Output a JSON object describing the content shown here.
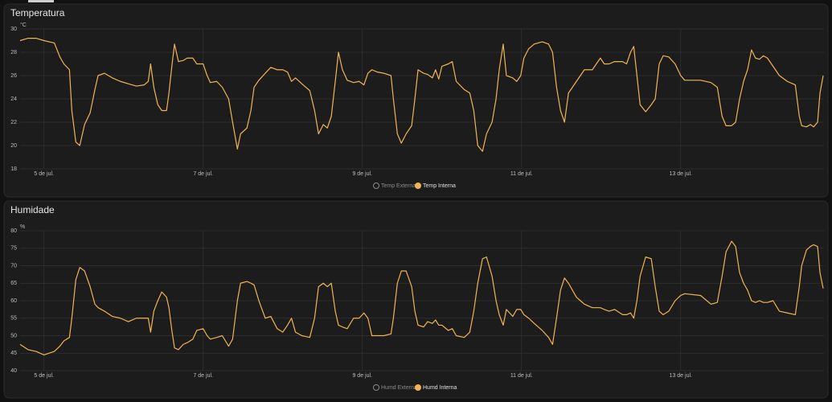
{
  "chart_data": [
    {
      "type": "line",
      "title": "Temperatura",
      "unit": "°C",
      "legend": "bottom",
      "grid": true,
      "x": [
        4.7,
        4.8,
        4.9,
        5.0,
        5.13,
        5.2,
        5.25,
        5.32,
        5.35,
        5.4,
        5.45,
        5.51,
        5.58,
        5.64,
        5.68,
        5.76,
        5.86,
        5.96,
        6.06,
        6.16,
        6.26,
        6.31,
        6.34,
        6.38,
        6.43,
        6.48,
        6.54,
        6.57,
        6.61,
        6.64,
        6.69,
        6.75,
        6.8,
        6.87,
        6.92,
        7.0,
        7.05,
        7.09,
        7.17,
        7.24,
        7.32,
        7.37,
        7.43,
        7.47,
        7.55,
        7.6,
        7.64,
        7.7,
        7.78,
        7.85,
        7.93,
        8.0,
        8.06,
        8.11,
        8.16,
        8.24,
        8.34,
        8.4,
        8.45,
        8.51,
        8.56,
        8.61,
        8.66,
        8.7,
        8.75,
        8.81,
        8.89,
        8.96,
        9.02,
        9.07,
        9.12,
        9.19,
        9.27,
        9.36,
        9.39,
        9.44,
        9.49,
        9.55,
        9.62,
        9.66,
        9.7,
        9.77,
        9.82,
        9.88,
        9.92,
        9.96,
        10.0,
        10.08,
        10.13,
        10.18,
        10.28,
        10.35,
        10.4,
        10.45,
        10.51,
        10.56,
        10.63,
        10.68,
        10.72,
        10.77,
        10.81,
        10.89,
        10.94,
        10.99,
        11.03,
        11.09,
        11.16,
        11.26,
        11.34,
        11.39,
        11.44,
        11.49,
        11.54,
        11.59,
        11.64,
        11.69,
        11.74,
        11.79,
        11.89,
        11.94,
        11.99,
        12.04,
        12.1,
        12.17,
        12.27,
        12.32,
        12.37,
        12.41,
        12.45,
        12.49,
        12.56,
        12.63,
        12.68,
        12.73,
        12.78,
        12.85,
        12.93,
        13.0,
        13.05,
        13.25,
        13.38,
        13.46,
        13.52,
        13.57,
        13.64,
        13.69,
        13.74,
        13.79,
        13.84,
        13.89,
        13.94,
        13.99,
        14.04,
        14.09,
        14.16,
        14.24,
        14.34,
        14.44,
        14.49,
        14.52,
        14.58,
        14.63,
        14.67,
        14.72,
        14.75,
        14.79
      ],
      "xlim": [
        4.7,
        14.8
      ],
      "xticks": [
        {
          "value": 5,
          "label": "5 de jul."
        },
        {
          "value": 7,
          "label": "7 de jul."
        },
        {
          "value": 9,
          "label": "9 de jul."
        },
        {
          "value": 11,
          "label": "11 de jul."
        },
        {
          "value": 13,
          "label": "13 de jul."
        }
      ],
      "ylim": [
        18,
        30
      ],
      "yticks": [
        18,
        20,
        22,
        24,
        26,
        28,
        30
      ],
      "series": [
        {
          "name": "Temp Externa",
          "color": "#8a8a8a",
          "hidden": true
        },
        {
          "name": "Temp Interna",
          "color": "#f0b454",
          "values": [
            29.0,
            29.2,
            29.2,
            29.0,
            28.8,
            27.6,
            27.0,
            26.5,
            23.0,
            20.3,
            20.0,
            21.8,
            22.8,
            24.8,
            26.0,
            26.2,
            25.8,
            25.5,
            25.3,
            25.1,
            25.2,
            25.5,
            27.0,
            25.0,
            23.5,
            23.0,
            23.0,
            24.5,
            27.0,
            28.7,
            27.2,
            27.3,
            27.5,
            27.5,
            27.0,
            27.0,
            26.0,
            25.4,
            25.5,
            25.0,
            24.0,
            22.0,
            19.7,
            21.0,
            21.5,
            23.0,
            25.0,
            25.6,
            26.2,
            26.7,
            26.5,
            26.5,
            26.3,
            25.5,
            25.8,
            25.3,
            24.7,
            23.0,
            21.0,
            21.8,
            21.5,
            22.5,
            25.5,
            28.0,
            26.5,
            25.6,
            25.4,
            25.5,
            25.2,
            26.2,
            26.5,
            26.3,
            26.2,
            26.0,
            24.0,
            21.0,
            20.2,
            21.0,
            21.7,
            24.0,
            26.5,
            26.2,
            26.1,
            25.8,
            26.5,
            25.7,
            26.8,
            27.0,
            27.2,
            25.5,
            24.8,
            24.5,
            23.0,
            20.0,
            19.5,
            21.0,
            22.0,
            24.0,
            26.5,
            28.7,
            26.0,
            25.8,
            25.5,
            26.0,
            27.5,
            28.3,
            28.7,
            28.9,
            28.7,
            28.0,
            25.0,
            23.0,
            22.0,
            24.5,
            25.0,
            25.5,
            26.0,
            26.5,
            26.5,
            27.0,
            27.5,
            27.0,
            27.0,
            27.2,
            27.2,
            27.0,
            28.0,
            28.5,
            26.0,
            23.5,
            22.9,
            23.5,
            24.0,
            27.0,
            27.7,
            27.6,
            27.0,
            26.0,
            25.6,
            25.6,
            25.4,
            25.0,
            22.5,
            21.7,
            21.7,
            22.0,
            24.0,
            25.5,
            26.5,
            28.2,
            27.5,
            27.4,
            27.7,
            27.5,
            26.8,
            26.0,
            25.5,
            25.2,
            22.5,
            21.7,
            21.6,
            21.8,
            21.6,
            22.0,
            24.5,
            26.0
          ]
        }
      ]
    },
    {
      "type": "line",
      "title": "Humidade",
      "unit": "%",
      "legend": "bottom",
      "grid": true,
      "x": [
        4.7,
        4.8,
        4.9,
        5.0,
        5.13,
        5.2,
        5.25,
        5.32,
        5.35,
        5.4,
        5.45,
        5.51,
        5.58,
        5.64,
        5.68,
        5.76,
        5.86,
        5.96,
        6.06,
        6.16,
        6.26,
        6.31,
        6.34,
        6.38,
        6.43,
        6.48,
        6.54,
        6.57,
        6.61,
        6.64,
        6.69,
        6.75,
        6.8,
        6.87,
        6.92,
        7.0,
        7.05,
        7.09,
        7.17,
        7.24,
        7.32,
        7.37,
        7.43,
        7.47,
        7.55,
        7.6,
        7.64,
        7.7,
        7.78,
        7.85,
        7.93,
        8.0,
        8.06,
        8.11,
        8.16,
        8.24,
        8.34,
        8.4,
        8.45,
        8.51,
        8.56,
        8.61,
        8.66,
        8.7,
        8.75,
        8.81,
        8.89,
        8.96,
        9.02,
        9.07,
        9.12,
        9.19,
        9.27,
        9.36,
        9.39,
        9.44,
        9.49,
        9.55,
        9.62,
        9.66,
        9.7,
        9.77,
        9.82,
        9.88,
        9.92,
        9.96,
        10.0,
        10.08,
        10.13,
        10.18,
        10.28,
        10.35,
        10.4,
        10.45,
        10.51,
        10.56,
        10.63,
        10.68,
        10.72,
        10.77,
        10.81,
        10.89,
        10.94,
        10.99,
        11.03,
        11.09,
        11.16,
        11.26,
        11.34,
        11.39,
        11.44,
        11.49,
        11.54,
        11.59,
        11.64,
        11.69,
        11.74,
        11.79,
        11.89,
        11.94,
        11.99,
        12.04,
        12.1,
        12.17,
        12.27,
        12.32,
        12.37,
        12.41,
        12.45,
        12.49,
        12.56,
        12.63,
        12.68,
        12.73,
        12.78,
        12.85,
        12.93,
        13.0,
        13.05,
        13.25,
        13.38,
        13.46,
        13.52,
        13.57,
        13.64,
        13.69,
        13.74,
        13.79,
        13.84,
        13.89,
        13.94,
        13.99,
        14.04,
        14.09,
        14.16,
        14.24,
        14.34,
        14.44,
        14.49,
        14.52,
        14.58,
        14.63,
        14.67,
        14.72,
        14.75,
        14.79
      ],
      "xlim": [
        4.7,
        14.8
      ],
      "xticks": [
        {
          "value": 5,
          "label": "5 de jul."
        },
        {
          "value": 7,
          "label": "7 de jul."
        },
        {
          "value": 9,
          "label": "9 de jul."
        },
        {
          "value": 11,
          "label": "11 de jul."
        },
        {
          "value": 13,
          "label": "13 de jul."
        }
      ],
      "ylim": [
        40,
        80
      ],
      "yticks": [
        40,
        45,
        50,
        55,
        60,
        65,
        70,
        75,
        80
      ],
      "series": [
        {
          "name": "Humd Externa",
          "color": "#8a8a8a",
          "hidden": true
        },
        {
          "name": "Humd Interna",
          "color": "#f0b454",
          "values": [
            47.5,
            46,
            45.5,
            44.5,
            45.5,
            47,
            48.5,
            49.5,
            55,
            66,
            69.5,
            68.5,
            64,
            59,
            58,
            57,
            55.5,
            55,
            54,
            55,
            55,
            55,
            51,
            57,
            60,
            62.5,
            61,
            58,
            51,
            46.5,
            46,
            47.5,
            48,
            49,
            51.5,
            52,
            50,
            49,
            49.5,
            50,
            47,
            49,
            60,
            65,
            65.5,
            65,
            64.5,
            60,
            55,
            55.5,
            52,
            51,
            53,
            55,
            51,
            50,
            49.5,
            55,
            64,
            65,
            64,
            65,
            57,
            53,
            52.5,
            52,
            55,
            55,
            56.5,
            55,
            50,
            50,
            50,
            50.5,
            55,
            65,
            68.5,
            68.5,
            64,
            57,
            53,
            52.5,
            54,
            53.5,
            54.5,
            53,
            53,
            51.5,
            52,
            50,
            49.5,
            51,
            57,
            65,
            72,
            72.5,
            67,
            60,
            56,
            53,
            57.5,
            55.5,
            57.5,
            57.5,
            56,
            55,
            53.5,
            51.5,
            49.5,
            47.5,
            55,
            63,
            66.5,
            65,
            63,
            61,
            60,
            59,
            58,
            58,
            58,
            57.5,
            57,
            57.5,
            56,
            56,
            56.5,
            55,
            60,
            67,
            72.5,
            72,
            64,
            57,
            56,
            57,
            60,
            61.5,
            62,
            61.5,
            59,
            59.5,
            67,
            74,
            77,
            75.5,
            68,
            65,
            63,
            60,
            59.5,
            60,
            59.5,
            59.5,
            60,
            57,
            56.5,
            56,
            64,
            70,
            74.5,
            75.5,
            76,
            75.5,
            68,
            63.5
          ]
        }
      ]
    }
  ]
}
